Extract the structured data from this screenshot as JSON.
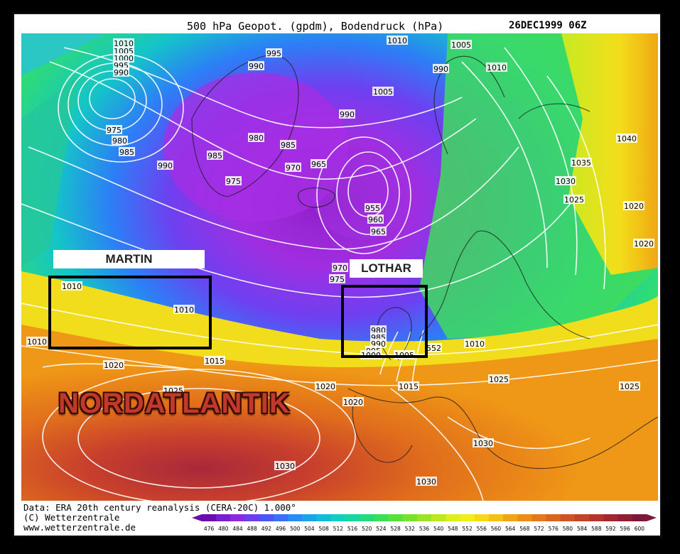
{
  "header": {
    "title": "500 hPa Geopot. (gpdm), Bodendruck (hPa)",
    "date": "26DEC1999 06Z"
  },
  "footer": {
    "line1": "Data: ERA 20th century reanalysis (CERA-20C) 1.000°",
    "line2": "(C) Wetterzentrale",
    "line3": "www.wetterzentrale.de"
  },
  "colorbar": {
    "ticks": [
      "476",
      "480",
      "484",
      "488",
      "492",
      "496",
      "500",
      "504",
      "508",
      "512",
      "516",
      "520",
      "524",
      "528",
      "532",
      "536",
      "540",
      "548",
      "552",
      "556",
      "560",
      "564",
      "568",
      "572",
      "576",
      "580",
      "584",
      "588",
      "592",
      "596",
      "600"
    ],
    "colors": [
      "#6a0dad",
      "#7a1fd0",
      "#8a2be2",
      "#6a3ff0",
      "#4a55f5",
      "#3a6ff7",
      "#2a8cf5",
      "#1aa5e8",
      "#10bcd6",
      "#0fcfc0",
      "#14d8a0",
      "#22dc7c",
      "#38e05a",
      "#55e23a",
      "#78e22a",
      "#9ae425",
      "#bce822",
      "#dcee20",
      "#f2ee1c",
      "#f5d818",
      "#f3c016",
      "#f0a614",
      "#ec8e16",
      "#e6781a",
      "#dc641e",
      "#d15224",
      "#c44228",
      "#b5342c",
      "#a22830",
      "#8e1f36",
      "#7c183c"
    ]
  },
  "isobar_labels": [
    "1010",
    "1005",
    "1000",
    "995",
    "990",
    "995",
    "990",
    "1010",
    "1005",
    "1010",
    "975",
    "980",
    "985",
    "990",
    "990",
    "980",
    "985",
    "970",
    "965",
    "985",
    "975",
    "1005",
    "990",
    "955",
    "960",
    "965",
    "1040",
    "1035",
    "1030",
    "1025",
    "1020",
    "1020",
    "970",
    "975",
    "1010",
    "1010",
    "1010",
    "980",
    "985",
    "990",
    "995",
    "1000",
    "1005",
    "552",
    "1010",
    "1015",
    "1020",
    "1020",
    "1015",
    "1025",
    "1020",
    "1025",
    "1025",
    "1030",
    "1030",
    "1030",
    "1010"
  ],
  "annotations": {
    "martin": "MARTIN",
    "lothar": "LOTHAR",
    "region": "NORDATLANTIK"
  },
  "colors": {
    "low_purple": "#8a2be2",
    "storm_belt_yellow": "#f2ee1c",
    "high_red": "#c44228"
  }
}
